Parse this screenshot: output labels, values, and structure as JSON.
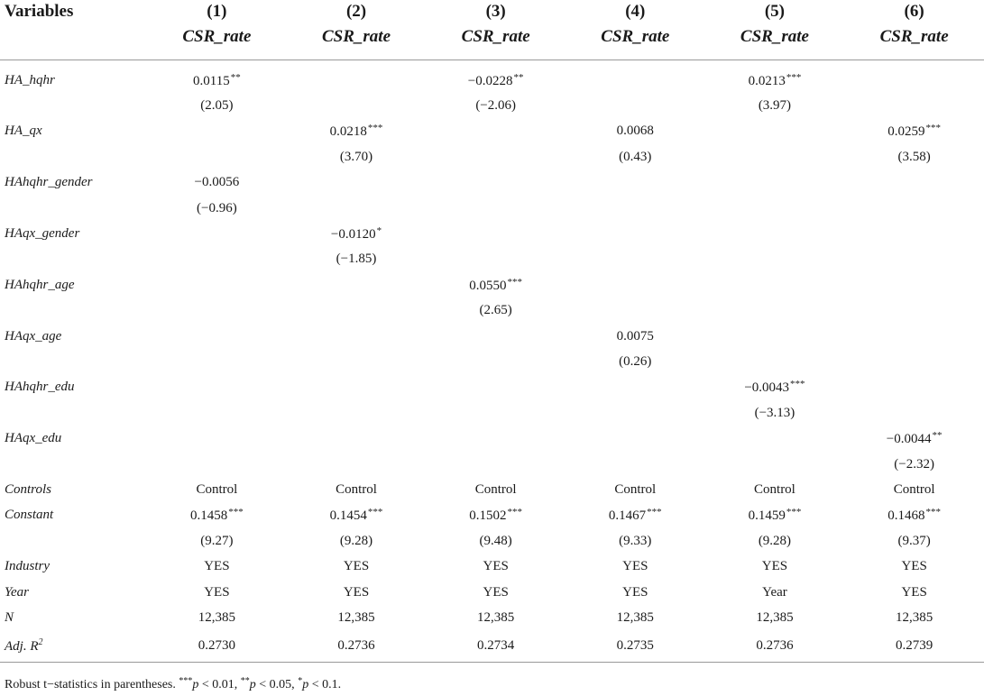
{
  "header": {
    "variables_label": "Variables",
    "columns": [
      {
        "num": "(1)",
        "dep": "CSR_rate"
      },
      {
        "num": "(2)",
        "dep": "CSR_rate"
      },
      {
        "num": "(3)",
        "dep": "CSR_rate"
      },
      {
        "num": "(4)",
        "dep": "CSR_rate"
      },
      {
        "num": "(5)",
        "dep": "CSR_rate"
      },
      {
        "num": "(6)",
        "dep": "CSR_rate"
      }
    ]
  },
  "rows": [
    {
      "label": "HA_hqhr",
      "cells": [
        {
          "v": "0.0115",
          "s": "**"
        },
        {
          "v": "",
          "s": ""
        },
        {
          "v": "−0.0228",
          "s": "**"
        },
        {
          "v": "",
          "s": ""
        },
        {
          "v": "0.0213",
          "s": "***"
        },
        {
          "v": "",
          "s": ""
        }
      ]
    },
    {
      "label": "",
      "cells": [
        {
          "v": "(2.05)",
          "s": ""
        },
        {
          "v": "",
          "s": ""
        },
        {
          "v": "(−2.06)",
          "s": ""
        },
        {
          "v": "",
          "s": ""
        },
        {
          "v": "(3.97)",
          "s": ""
        },
        {
          "v": "",
          "s": ""
        }
      ]
    },
    {
      "label": "HA_qx",
      "cells": [
        {
          "v": "",
          "s": ""
        },
        {
          "v": "0.0218",
          "s": "***"
        },
        {
          "v": "",
          "s": ""
        },
        {
          "v": "0.0068",
          "s": ""
        },
        {
          "v": "",
          "s": ""
        },
        {
          "v": "0.0259",
          "s": "***"
        }
      ]
    },
    {
      "label": "",
      "cells": [
        {
          "v": "",
          "s": ""
        },
        {
          "v": "(3.70)",
          "s": ""
        },
        {
          "v": "",
          "s": ""
        },
        {
          "v": "(0.43)",
          "s": ""
        },
        {
          "v": "",
          "s": ""
        },
        {
          "v": "(3.58)",
          "s": ""
        }
      ]
    },
    {
      "label": "HAhqhr_gender",
      "cells": [
        {
          "v": "−0.0056",
          "s": ""
        },
        {
          "v": "",
          "s": ""
        },
        {
          "v": "",
          "s": ""
        },
        {
          "v": "",
          "s": ""
        },
        {
          "v": "",
          "s": ""
        },
        {
          "v": "",
          "s": ""
        }
      ]
    },
    {
      "label": "",
      "cells": [
        {
          "v": "(−0.96)",
          "s": ""
        },
        {
          "v": "",
          "s": ""
        },
        {
          "v": "",
          "s": ""
        },
        {
          "v": "",
          "s": ""
        },
        {
          "v": "",
          "s": ""
        },
        {
          "v": "",
          "s": ""
        }
      ]
    },
    {
      "label": "HAqx_gender",
      "cells": [
        {
          "v": "",
          "s": ""
        },
        {
          "v": "−0.0120",
          "s": "*"
        },
        {
          "v": "",
          "s": ""
        },
        {
          "v": "",
          "s": ""
        },
        {
          "v": "",
          "s": ""
        },
        {
          "v": "",
          "s": ""
        }
      ]
    },
    {
      "label": "",
      "cells": [
        {
          "v": "",
          "s": ""
        },
        {
          "v": "(−1.85)",
          "s": ""
        },
        {
          "v": "",
          "s": ""
        },
        {
          "v": "",
          "s": ""
        },
        {
          "v": "",
          "s": ""
        },
        {
          "v": "",
          "s": ""
        }
      ]
    },
    {
      "label": "HAhqhr_age",
      "cells": [
        {
          "v": "",
          "s": ""
        },
        {
          "v": "",
          "s": ""
        },
        {
          "v": "0.0550",
          "s": "***"
        },
        {
          "v": "",
          "s": ""
        },
        {
          "v": "",
          "s": ""
        },
        {
          "v": "",
          "s": ""
        }
      ]
    },
    {
      "label": "",
      "cells": [
        {
          "v": "",
          "s": ""
        },
        {
          "v": "",
          "s": ""
        },
        {
          "v": "(2.65)",
          "s": ""
        },
        {
          "v": "",
          "s": ""
        },
        {
          "v": "",
          "s": ""
        },
        {
          "v": "",
          "s": ""
        }
      ]
    },
    {
      "label": "HAqx_age",
      "cells": [
        {
          "v": "",
          "s": ""
        },
        {
          "v": "",
          "s": ""
        },
        {
          "v": "",
          "s": ""
        },
        {
          "v": "0.0075",
          "s": ""
        },
        {
          "v": "",
          "s": ""
        },
        {
          "v": "",
          "s": ""
        }
      ]
    },
    {
      "label": "",
      "cells": [
        {
          "v": "",
          "s": ""
        },
        {
          "v": "",
          "s": ""
        },
        {
          "v": "",
          "s": ""
        },
        {
          "v": "(0.26)",
          "s": ""
        },
        {
          "v": "",
          "s": ""
        },
        {
          "v": "",
          "s": ""
        }
      ]
    },
    {
      "label": "HAhqhr_edu",
      "cells": [
        {
          "v": "",
          "s": ""
        },
        {
          "v": "",
          "s": ""
        },
        {
          "v": "",
          "s": ""
        },
        {
          "v": "",
          "s": ""
        },
        {
          "v": "−0.0043",
          "s": "***"
        },
        {
          "v": "",
          "s": ""
        }
      ]
    },
    {
      "label": "",
      "cells": [
        {
          "v": "",
          "s": ""
        },
        {
          "v": "",
          "s": ""
        },
        {
          "v": "",
          "s": ""
        },
        {
          "v": "",
          "s": ""
        },
        {
          "v": "(−3.13)",
          "s": ""
        },
        {
          "v": "",
          "s": ""
        }
      ]
    },
    {
      "label": "HAqx_edu",
      "cells": [
        {
          "v": "",
          "s": ""
        },
        {
          "v": "",
          "s": ""
        },
        {
          "v": "",
          "s": ""
        },
        {
          "v": "",
          "s": ""
        },
        {
          "v": "",
          "s": ""
        },
        {
          "v": "−0.0044",
          "s": "**"
        }
      ]
    },
    {
      "label": "",
      "cells": [
        {
          "v": "",
          "s": ""
        },
        {
          "v": "",
          "s": ""
        },
        {
          "v": "",
          "s": ""
        },
        {
          "v": "",
          "s": ""
        },
        {
          "v": "",
          "s": ""
        },
        {
          "v": "(−2.32)",
          "s": ""
        }
      ]
    },
    {
      "label": "Controls",
      "cells": [
        {
          "v": "Control",
          "s": ""
        },
        {
          "v": "Control",
          "s": ""
        },
        {
          "v": "Control",
          "s": ""
        },
        {
          "v": "Control",
          "s": ""
        },
        {
          "v": "Control",
          "s": ""
        },
        {
          "v": "Control",
          "s": ""
        }
      ]
    },
    {
      "label": "Constant",
      "cells": [
        {
          "v": "0.1458",
          "s": "***"
        },
        {
          "v": "0.1454",
          "s": "***"
        },
        {
          "v": "0.1502",
          "s": "***"
        },
        {
          "v": "0.1467",
          "s": "***"
        },
        {
          "v": "0.1459",
          "s": "***"
        },
        {
          "v": "0.1468",
          "s": "***"
        }
      ]
    },
    {
      "label": "",
      "cells": [
        {
          "v": "(9.27)",
          "s": ""
        },
        {
          "v": "(9.28)",
          "s": ""
        },
        {
          "v": "(9.48)",
          "s": ""
        },
        {
          "v": "(9.33)",
          "s": ""
        },
        {
          "v": "(9.28)",
          "s": ""
        },
        {
          "v": "(9.37)",
          "s": ""
        }
      ]
    },
    {
      "label": "Industry",
      "cells": [
        {
          "v": "YES",
          "s": ""
        },
        {
          "v": "YES",
          "s": ""
        },
        {
          "v": "YES",
          "s": ""
        },
        {
          "v": "YES",
          "s": ""
        },
        {
          "v": "YES",
          "s": ""
        },
        {
          "v": "YES",
          "s": ""
        }
      ]
    },
    {
      "label": "Year",
      "cells": [
        {
          "v": "YES",
          "s": ""
        },
        {
          "v": "YES",
          "s": ""
        },
        {
          "v": "YES",
          "s": ""
        },
        {
          "v": "YES",
          "s": ""
        },
        {
          "v": "Year",
          "s": ""
        },
        {
          "v": "YES",
          "s": ""
        }
      ]
    },
    {
      "label": "N",
      "cells": [
        {
          "v": "12,385",
          "s": ""
        },
        {
          "v": "12,385",
          "s": ""
        },
        {
          "v": "12,385",
          "s": ""
        },
        {
          "v": "12,385",
          "s": ""
        },
        {
          "v": "12,385",
          "s": ""
        },
        {
          "v": "12,385",
          "s": ""
        }
      ]
    },
    {
      "label": "Adj. R",
      "label_sup": "2",
      "cells": [
        {
          "v": "0.2730",
          "s": ""
        },
        {
          "v": "0.2736",
          "s": ""
        },
        {
          "v": "0.2734",
          "s": ""
        },
        {
          "v": "0.2735",
          "s": ""
        },
        {
          "v": "0.2736",
          "s": ""
        },
        {
          "v": "0.2739",
          "s": ""
        }
      ]
    }
  ],
  "note": {
    "prefix": "Robust t−statistics in parentheses. ",
    "s3": "***",
    "p1": "p",
    "t1": " < 0.01, ",
    "s2": "**",
    "p2": "p",
    "t2": " < 0.05, ",
    "s1": "*",
    "p3": "p",
    "t3": " < 0.1."
  }
}
